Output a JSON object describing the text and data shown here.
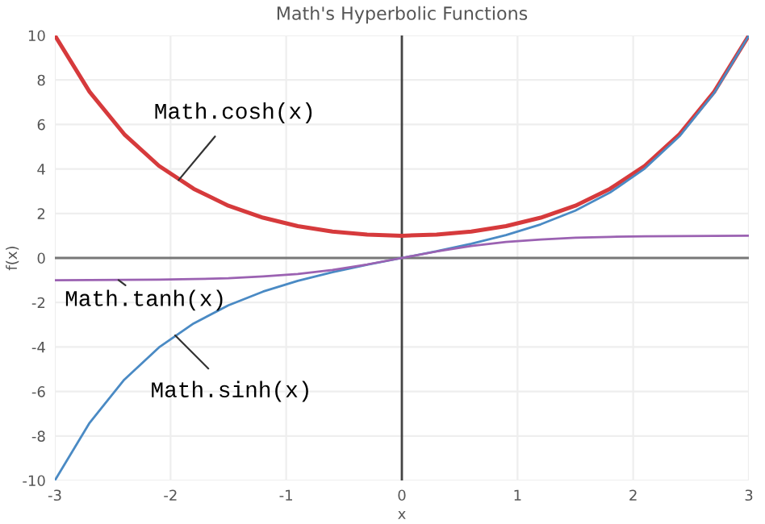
{
  "chart_data": {
    "type": "line",
    "title": "Math's Hyperbolic Functions",
    "xlabel": "x",
    "ylabel": "f(x)",
    "x": [
      -3,
      -2.7,
      -2.4,
      -2.1,
      -1.8,
      -1.5,
      -1.2,
      -0.9,
      -0.6,
      -0.3,
      0,
      0.3,
      0.6,
      0.9,
      1.2,
      1.5,
      1.8,
      2.1,
      2.4,
      2.7,
      3
    ],
    "series": [
      {
        "color": "#d63a3c",
        "values": [
          10,
          7.47,
          5.56,
          4.14,
          3.11,
          2.35,
          1.81,
          1.43,
          1.19,
          1.05,
          1,
          1.05,
          1.19,
          1.43,
          1.81,
          2.35,
          3.11,
          4.14,
          5.56,
          7.47,
          10
        ]
      },
      {
        "color": "#4a8ac4",
        "values": [
          -10,
          -7.41,
          -5.47,
          -4.02,
          -2.94,
          -2.13,
          -1.51,
          -1.03,
          -0.64,
          -0.3,
          0,
          0.3,
          0.64,
          1.03,
          1.51,
          2.13,
          2.94,
          4.02,
          5.47,
          7.41,
          10
        ]
      },
      {
        "color": "#9b62b2",
        "values": [
          -1,
          -0.99,
          -0.98,
          -0.97,
          -0.95,
          -0.91,
          -0.83,
          -0.72,
          -0.54,
          -0.29,
          0,
          0.29,
          0.54,
          0.72,
          0.83,
          0.91,
          0.95,
          0.97,
          0.98,
          0.99,
          1
        ]
      }
    ],
    "annotations": [
      {
        "text": "Math.cosh(x)",
        "x": -1.93,
        "y": 3.5
      },
      {
        "text": "Math.tanh(x)",
        "x": -2.45,
        "y": -0.99
      },
      {
        "text": "Math.sinh(x)",
        "x": -1.96,
        "y": -3.48
      }
    ],
    "ref_lines": [
      {
        "axis": "x",
        "value": 0,
        "color": "#444444"
      },
      {
        "axis": "y",
        "value": 0,
        "color": "#777777"
      }
    ],
    "xlim": [
      -3,
      3
    ],
    "ylim": [
      -10,
      10
    ],
    "xticks": [
      -3,
      -2,
      -1,
      0,
      1,
      2,
      3
    ],
    "yticks": [
      -10,
      -8,
      -6,
      -4,
      -2,
      0,
      2,
      4,
      6,
      8,
      10
    ],
    "grid": true,
    "legend": false,
    "marker": "none",
    "line_style": "solid"
  }
}
